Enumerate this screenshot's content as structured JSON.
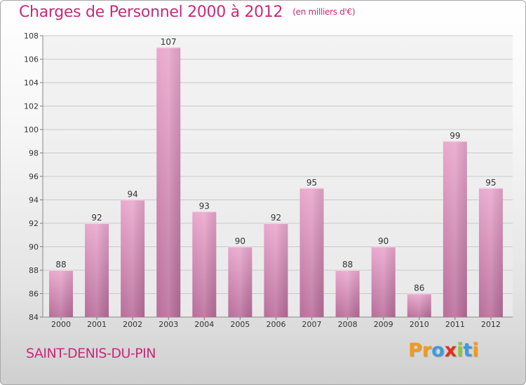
{
  "title": "Charges de Personnel 2000 à 2012",
  "subtitle": "(en milliers d'€)",
  "city": "SAINT-DENIS-DU-PIN",
  "logo": "Proxiti",
  "colors": {
    "title": "#c72a7a",
    "bar_light": "#e9a8cd",
    "bar_dark": "#b86d9a",
    "grid": "#c8c8c8",
    "axis": "#555555"
  },
  "chart_data": {
    "type": "bar",
    "title": "Charges de Personnel 2000 à 2012",
    "subtitle": "(en milliers d'€)",
    "categories": [
      "2000",
      "2001",
      "2002",
      "2003",
      "2004",
      "2005",
      "2006",
      "2007",
      "2008",
      "2009",
      "2010",
      "2011",
      "2012"
    ],
    "values": [
      88,
      92,
      94,
      107,
      93,
      90,
      92,
      95,
      88,
      90,
      86,
      99,
      95
    ],
    "ylim": [
      84,
      108
    ],
    "yticks": [
      84,
      86,
      88,
      90,
      92,
      94,
      96,
      98,
      100,
      102,
      104,
      106,
      108
    ],
    "grid": true,
    "xlabel": "",
    "ylabel": ""
  }
}
